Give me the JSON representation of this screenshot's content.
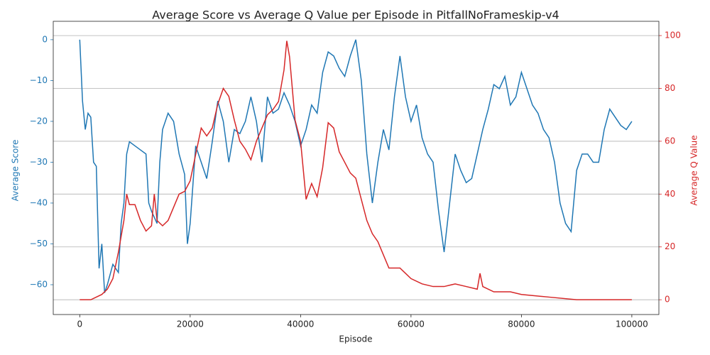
{
  "chart_data": {
    "type": "line",
    "title": "Average Score vs Average Q Value per Episode in PitfallNoFrameskip-v4",
    "x_label": "Episode",
    "y_label": "Average Score",
    "y2_label": "Average Q Value",
    "xlim": [
      -4800,
      104900
    ],
    "xticks": [
      0,
      20000,
      40000,
      60000,
      80000,
      100000
    ],
    "ylim": [
      -67.3,
      4.5
    ],
    "yticks": [
      {
        "value": -60,
        "label": "−60"
      },
      {
        "value": -50,
        "label": "−50"
      },
      {
        "value": -40,
        "label": "−40"
      },
      {
        "value": -30,
        "label": "−30"
      },
      {
        "value": -20,
        "label": "−20"
      },
      {
        "value": -10,
        "label": "−10"
      },
      0
    ],
    "y2lim": [
      -5.6,
      105.4
    ],
    "y2ticks": [
      0,
      20,
      40,
      60,
      80,
      100
    ],
    "grid": "y2",
    "series": [
      {
        "name": "Average Score",
        "color": "#1f77b4",
        "axis": "y",
        "x": [
          0,
          500,
          1000,
          1500,
          2000,
          2500,
          3000,
          3500,
          4000,
          4500,
          5000,
          6000,
          7000,
          7500,
          8000,
          8500,
          9000,
          10000,
          11000,
          12000,
          12500,
          13000,
          14000,
          14500,
          15000,
          16000,
          17000,
          18000,
          19000,
          19500,
          20000,
          21000,
          22000,
          23000,
          24000,
          25000,
          26000,
          27000,
          28000,
          29000,
          30000,
          31000,
          32000,
          33000,
          34000,
          35000,
          36000,
          37000,
          38000,
          39000,
          40000,
          41000,
          42000,
          43000,
          44000,
          45000,
          46000,
          47000,
          48000,
          49000,
          50000,
          51000,
          52000,
          53000,
          54000,
          55000,
          56000,
          57000,
          58000,
          59000,
          60000,
          61000,
          62000,
          63000,
          64000,
          65000,
          66000,
          67000,
          68000,
          69000,
          70000,
          71000,
          72000,
          73000,
          74000,
          75000,
          76000,
          77000,
          78000,
          79000,
          80000,
          81000,
          82000,
          83000,
          84000,
          85000,
          86000,
          87000,
          88000,
          89000,
          90000,
          91000,
          92000,
          93000,
          94000,
          95000,
          96000,
          97000,
          98000,
          99000,
          100000
        ],
        "values": [
          0,
          -15,
          -22,
          -18,
          -19,
          -30,
          -31,
          -56,
          -50,
          -62,
          -60,
          -55,
          -57,
          -45,
          -40,
          -28,
          -25,
          -26,
          -27,
          -28,
          -40,
          -42,
          -45,
          -30,
          -22,
          -18,
          -20,
          -28,
          -33,
          -50,
          -45,
          -26,
          -30,
          -34,
          -25,
          -15,
          -20,
          -30,
          -22,
          -23,
          -20,
          -14,
          -20,
          -30,
          -14,
          -18,
          -17,
          -13,
          -16,
          -20,
          -26,
          -22,
          -16,
          -18,
          -8,
          -3,
          -4,
          -7,
          -9,
          -4,
          0,
          -10,
          -28,
          -40,
          -30,
          -22,
          -27,
          -14,
          -4,
          -14,
          -20,
          -16,
          -24,
          -28,
          -30,
          -42,
          -52,
          -40,
          -28,
          -32,
          -35,
          -34,
          -28,
          -22,
          -17,
          -11,
          -12,
          -9,
          -16,
          -14,
          -8,
          -12,
          -16,
          -18,
          -22,
          -24,
          -30,
          -40,
          -45,
          -47,
          -32,
          -28,
          -28,
          -30,
          -30,
          -22,
          -17,
          -19,
          -21,
          -22,
          -20
        ]
      },
      {
        "name": "Average Q Value",
        "color": "#d62728",
        "axis": "y2",
        "x": [
          0,
          2000,
          3000,
          4000,
          5000,
          6000,
          7000,
          8000,
          8500,
          9000,
          10000,
          11000,
          12000,
          13000,
          13500,
          14000,
          15000,
          16000,
          17000,
          18000,
          19000,
          20000,
          21000,
          22000,
          23000,
          24000,
          25000,
          26000,
          27000,
          28000,
          29000,
          30000,
          31000,
          32000,
          33000,
          34000,
          35000,
          36000,
          37000,
          37500,
          38000,
          39000,
          40000,
          41000,
          42000,
          43000,
          44000,
          45000,
          46000,
          47000,
          48000,
          49000,
          50000,
          51000,
          52000,
          53000,
          54000,
          55000,
          56000,
          57000,
          58000,
          59000,
          60000,
          62000,
          64000,
          66000,
          68000,
          70000,
          72000,
          72500,
          73000,
          75000,
          78000,
          80000,
          85000,
          90000,
          95000,
          100000
        ],
        "values": [
          0,
          0,
          1,
          2,
          4,
          8,
          18,
          30,
          40,
          36,
          36,
          30,
          26,
          28,
          40,
          30,
          28,
          30,
          35,
          40,
          41,
          45,
          55,
          65,
          62,
          65,
          74,
          80,
          77,
          68,
          60,
          57,
          53,
          60,
          65,
          70,
          72,
          75,
          87,
          98,
          92,
          68,
          60,
          38,
          44,
          39,
          50,
          67,
          65,
          56,
          52,
          48,
          46,
          38,
          30,
          25,
          22,
          17,
          12,
          12,
          12,
          10,
          8,
          6,
          5,
          5,
          6,
          5,
          4,
          10,
          5,
          3,
          3,
          2,
          1,
          0,
          0,
          0
        ]
      }
    ]
  }
}
